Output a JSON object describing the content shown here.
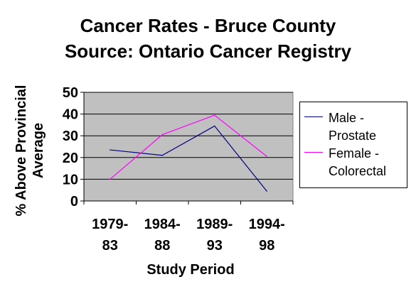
{
  "chart_data": {
    "type": "line",
    "title": "Cancer Rates - Bruce County",
    "subtitle": "Source:  Ontario Cancer Registry",
    "xlabel": "Study Period",
    "ylabel": "% Above Provincial Average",
    "ylim": [
      0,
      50
    ],
    "yticks": [
      "0",
      "10",
      "20",
      "30",
      "40",
      "50"
    ],
    "categories": [
      "1979-83",
      "1984-88",
      "1989-93",
      "1994-98"
    ],
    "category_labels": [
      [
        "1979-",
        "83"
      ],
      [
        "1984-",
        "88"
      ],
      [
        "1989-",
        "93"
      ],
      [
        "1994-",
        "98"
      ]
    ],
    "grid": true,
    "legend_position": "right",
    "series": [
      {
        "name": "Male - Prostate",
        "legend_lines": "Male -\nProstate",
        "color": "#000080",
        "values": [
          23.5,
          21,
          34.5,
          4.5
        ]
      },
      {
        "name": "Female - Colorectal",
        "legend_lines": "Female -\nColorectal",
        "color": "#ff00ff",
        "values": [
          10,
          30.5,
          39.5,
          20.5
        ]
      }
    ],
    "plot_background": "#c0c0c0"
  }
}
